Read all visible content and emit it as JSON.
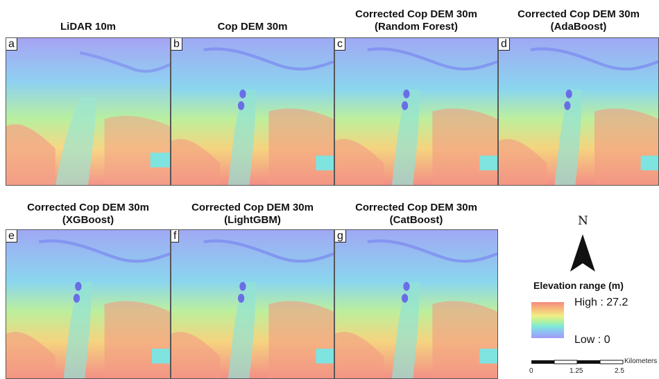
{
  "panels": [
    {
      "letter": "a",
      "title": [
        "LiDAR 10m"
      ]
    },
    {
      "letter": "b",
      "title": [
        "Cop DEM 30m"
      ]
    },
    {
      "letter": "c",
      "title": [
        "Corrected Cop DEM 30m",
        "(Random Forest)"
      ]
    },
    {
      "letter": "d",
      "title": [
        "Corrected Cop DEM 30m",
        "(AdaBoost)"
      ]
    },
    {
      "letter": "e",
      "title": [
        "Corrected Cop DEM  30m",
        "(XGBoost)"
      ]
    },
    {
      "letter": "f",
      "title": [
        "Corrected Cop DEM 30m",
        "(LightGBM)"
      ]
    },
    {
      "letter": "g",
      "title": [
        "Corrected Cop DEM 30m",
        "(CatBoost)"
      ]
    }
  ],
  "legend": {
    "north_label": "N",
    "title": "Elevation range (m)",
    "high_label": "High : 27.2",
    "low_label": "Low : 0",
    "scale_ticks": [
      "0",
      "1.25",
      "2.5"
    ],
    "scale_unit": "Kilometers",
    "ramp_colors": [
      "#f48a82",
      "#f7b878",
      "#f1ee86",
      "#b6f29b",
      "#7ee8d8",
      "#8fbdf7",
      "#a29bf5"
    ]
  }
}
